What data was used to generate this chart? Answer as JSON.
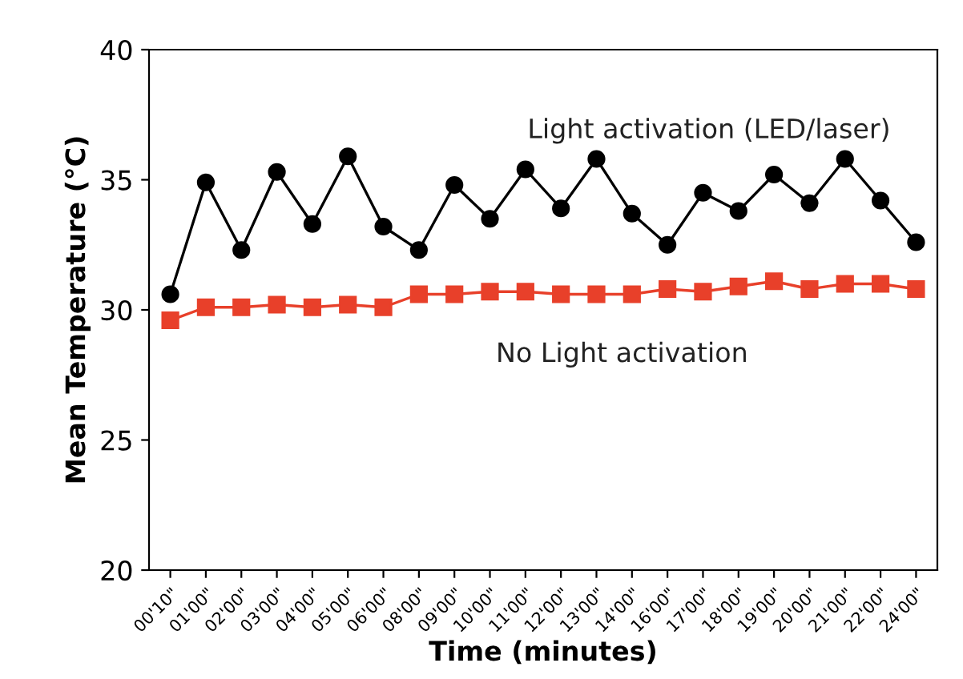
{
  "chart_data": {
    "type": "line",
    "xlabel": "Time (minutes)",
    "ylabel": "Mean Temperature (°C)",
    "categories": [
      "00'10\"",
      "01'00\"",
      "02'00\"",
      "03'00\"",
      "04'00\"",
      "05'00\"",
      "06'00\"",
      "08'00\"",
      "09'00\"",
      "10'00\"",
      "11'00\"",
      "12'00\"",
      "13'00\"",
      "14'00\"",
      "16'00\"",
      "17'00\"",
      "18'00\"",
      "19'00\"",
      "20'00\"",
      "21'00\"",
      "22'00\"",
      "24'00\""
    ],
    "series": [
      {
        "name": "Light activation (LED/laser)",
        "color": "#000000",
        "marker": "circle",
        "values": [
          30.6,
          34.9,
          32.3,
          35.3,
          33.3,
          35.9,
          33.2,
          32.3,
          34.8,
          33.5,
          35.4,
          33.9,
          35.8,
          33.7,
          32.5,
          34.5,
          33.8,
          35.2,
          34.1,
          35.8,
          34.2,
          32.6
        ]
      },
      {
        "name": "No Light activation",
        "color": "#e8402a",
        "marker": "square",
        "values": [
          29.6,
          30.1,
          30.1,
          30.2,
          30.1,
          30.2,
          30.1,
          30.6,
          30.6,
          30.7,
          30.7,
          30.6,
          30.6,
          30.6,
          30.8,
          30.7,
          30.9,
          31.1,
          30.8,
          31.0,
          31.0,
          30.8
        ]
      }
    ],
    "ylim": [
      20,
      40
    ],
    "yticks": [
      20,
      25,
      30,
      35,
      40
    ],
    "grid": false,
    "legend": false,
    "line_style": "solid"
  }
}
